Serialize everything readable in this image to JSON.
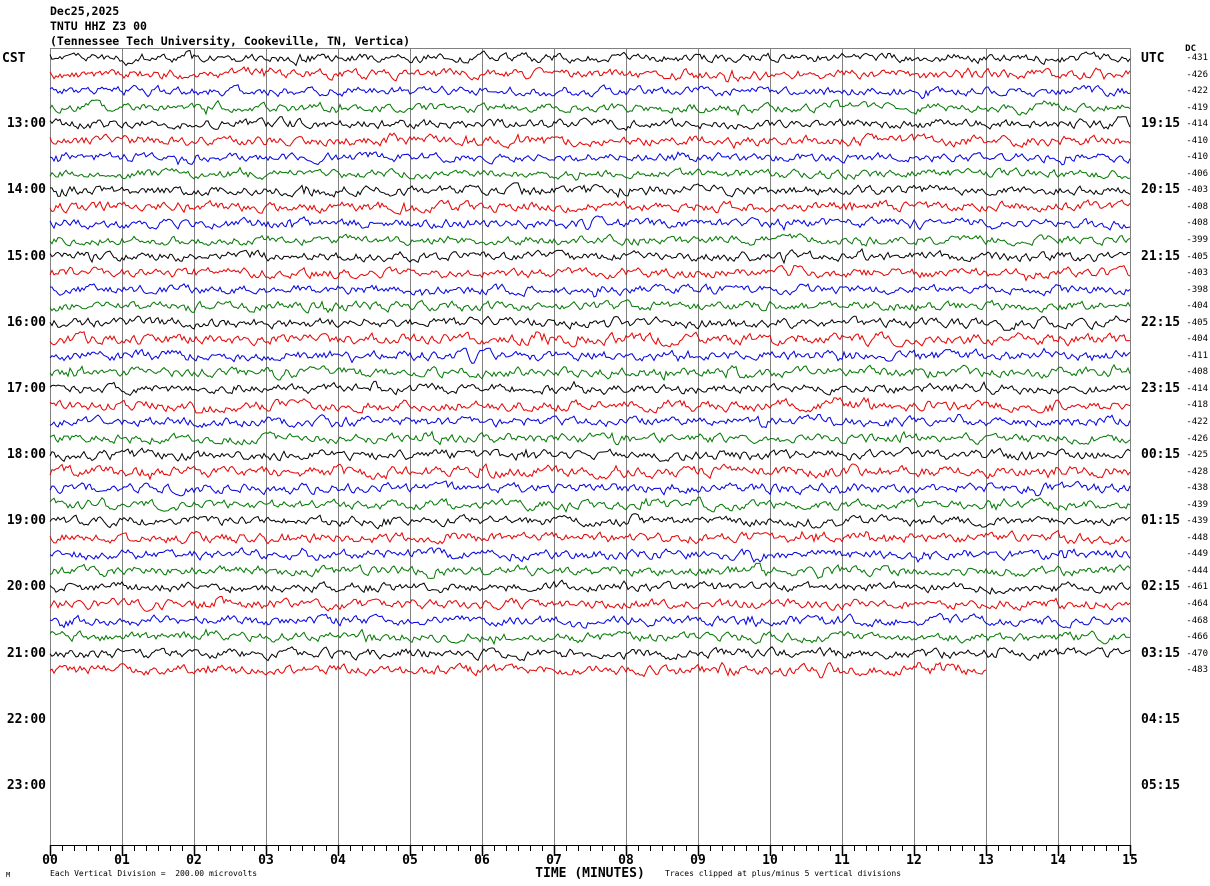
{
  "header": {
    "date": "Dec25,2025",
    "station": "TNTU HHZ Z3 00",
    "location": "(Tennessee Tech University, Cookeville, TN, Vertica)"
  },
  "axes": {
    "left_timezone": "CST",
    "right_timezone": "UTC",
    "dc_header": "DC",
    "x_title": "TIME (MINUTES)",
    "x_tick_labels": [
      "00",
      "01",
      "02",
      "03",
      "04",
      "05",
      "06",
      "07",
      "08",
      "09",
      "10",
      "11",
      "12",
      "13",
      "14",
      "15"
    ]
  },
  "footer": {
    "corner_mark": "M",
    "scale_note": "Each Vertical Division =  200.00 microvolts",
    "clip_note": "Traces clipped at plus/minus 5 vertical divisions"
  },
  "chart_data": {
    "type": "line",
    "variant": "helicorder-seismogram",
    "title": "TNTU HHZ Z3 00 Dec25,2025",
    "xlabel": "TIME (MINUTES)",
    "x_range_minutes": [
      0,
      15
    ],
    "minor_ticks_per_minute": 6,
    "row_slots": 48,
    "rows_per_hour": 4,
    "grid": true,
    "microvolts_per_division": 200.0,
    "clip_divisions": 5,
    "colors": {
      "black": "#000000",
      "red": "#e60000",
      "blue": "#0000e0",
      "green": "#007700",
      "grid": "#808080",
      "axis": "#000000"
    },
    "left_time_labels": [
      {
        "row": 4,
        "label": "13:00"
      },
      {
        "row": 8,
        "label": "14:00"
      },
      {
        "row": 12,
        "label": "15:00"
      },
      {
        "row": 16,
        "label": "16:00"
      },
      {
        "row": 20,
        "label": "17:00"
      },
      {
        "row": 24,
        "label": "18:00"
      },
      {
        "row": 28,
        "label": "19:00"
      },
      {
        "row": 32,
        "label": "20:00"
      },
      {
        "row": 36,
        "label": "21:00"
      },
      {
        "row": 40,
        "label": "22:00"
      },
      {
        "row": 44,
        "label": "23:00"
      }
    ],
    "right_time_labels": [
      {
        "row": 4,
        "label": "19:15"
      },
      {
        "row": 8,
        "label": "20:15"
      },
      {
        "row": 12,
        "label": "21:15"
      },
      {
        "row": 16,
        "label": "22:15"
      },
      {
        "row": 20,
        "label": "23:15"
      },
      {
        "row": 24,
        "label": "00:15"
      },
      {
        "row": 28,
        "label": "01:15"
      },
      {
        "row": 32,
        "label": "02:15"
      },
      {
        "row": 36,
        "label": "03:15"
      },
      {
        "row": 40,
        "label": "04:15"
      },
      {
        "row": 44,
        "label": "05:15"
      }
    ],
    "traces": [
      {
        "row": 0,
        "color": "black",
        "dc": -431,
        "end_minute": 15,
        "amp": 2.5,
        "seed": 7
      },
      {
        "row": 1,
        "color": "red",
        "dc": -426,
        "end_minute": 15,
        "amp": 2.7,
        "seed": 138
      },
      {
        "row": 2,
        "color": "blue",
        "dc": -422,
        "end_minute": 15,
        "amp": 2.6,
        "seed": 269
      },
      {
        "row": 3,
        "color": "green",
        "dc": -419,
        "end_minute": 15,
        "amp": 2.4,
        "seed": 400
      },
      {
        "row": 4,
        "color": "black",
        "dc": -414,
        "end_minute": 15,
        "amp": 2.6,
        "seed": 531
      },
      {
        "row": 5,
        "color": "red",
        "dc": -410,
        "end_minute": 15,
        "amp": 2.8,
        "seed": 662
      },
      {
        "row": 6,
        "color": "blue",
        "dc": -410,
        "end_minute": 15,
        "amp": 2.5,
        "seed": 793
      },
      {
        "row": 7,
        "color": "green",
        "dc": -406,
        "end_minute": 15,
        "amp": 2.4,
        "seed": 924
      },
      {
        "row": 8,
        "color": "black",
        "dc": -403,
        "end_minute": 15,
        "amp": 2.6,
        "seed": 1055
      },
      {
        "row": 9,
        "color": "red",
        "dc": -408,
        "end_minute": 15,
        "amp": 2.9,
        "seed": 1186
      },
      {
        "row": 10,
        "color": "blue",
        "dc": -408,
        "end_minute": 15,
        "amp": 2.7,
        "seed": 1317
      },
      {
        "row": 11,
        "color": "green",
        "dc": -399,
        "end_minute": 15,
        "amp": 2.5,
        "seed": 1448
      },
      {
        "row": 12,
        "color": "black",
        "dc": -405,
        "end_minute": 15,
        "amp": 2.6,
        "seed": 1579
      },
      {
        "row": 13,
        "color": "red",
        "dc": -403,
        "end_minute": 15,
        "amp": 2.7,
        "seed": 1710
      },
      {
        "row": 14,
        "color": "blue",
        "dc": -398,
        "end_minute": 15,
        "amp": 2.5,
        "seed": 1841
      },
      {
        "row": 15,
        "color": "green",
        "dc": -404,
        "end_minute": 15,
        "amp": 2.6,
        "seed": 1972
      },
      {
        "row": 16,
        "color": "black",
        "dc": -405,
        "end_minute": 15,
        "amp": 2.8,
        "seed": 2103
      },
      {
        "row": 17,
        "color": "red",
        "dc": -404,
        "end_minute": 15,
        "amp": 3.0,
        "seed": 2234
      },
      {
        "row": 18,
        "color": "blue",
        "dc": -411,
        "end_minute": 15,
        "amp": 2.9,
        "seed": 2365
      },
      {
        "row": 19,
        "color": "green",
        "dc": -408,
        "end_minute": 15,
        "amp": 2.8,
        "seed": 2496
      },
      {
        "row": 20,
        "color": "black",
        "dc": -414,
        "end_minute": 15,
        "amp": 2.6,
        "seed": 2627
      },
      {
        "row": 21,
        "color": "red",
        "dc": -418,
        "end_minute": 15,
        "amp": 2.9,
        "seed": 2758
      },
      {
        "row": 22,
        "color": "blue",
        "dc": -422,
        "end_minute": 15,
        "amp": 2.7,
        "seed": 2889
      },
      {
        "row": 23,
        "color": "green",
        "dc": -426,
        "end_minute": 15,
        "amp": 2.6,
        "seed": 3020
      },
      {
        "row": 24,
        "color": "black",
        "dc": -425,
        "end_minute": 15,
        "amp": 2.8,
        "seed": 3151
      },
      {
        "row": 25,
        "color": "red",
        "dc": -428,
        "end_minute": 15,
        "amp": 3.0,
        "seed": 3282
      },
      {
        "row": 26,
        "color": "blue",
        "dc": -438,
        "end_minute": 15,
        "amp": 2.8,
        "seed": 3413
      },
      {
        "row": 27,
        "color": "green",
        "dc": -439,
        "end_minute": 15,
        "amp": 2.7,
        "seed": 3544
      },
      {
        "row": 28,
        "color": "black",
        "dc": -439,
        "end_minute": 15,
        "amp": 2.6,
        "seed": 3675
      },
      {
        "row": 29,
        "color": "red",
        "dc": -448,
        "end_minute": 15,
        "amp": 2.9,
        "seed": 3806
      },
      {
        "row": 30,
        "color": "blue",
        "dc": -449,
        "end_minute": 15,
        "amp": 2.8,
        "seed": 3937
      },
      {
        "row": 31,
        "color": "green",
        "dc": -444,
        "end_minute": 15,
        "amp": 2.7,
        "seed": 4068
      },
      {
        "row": 32,
        "color": "black",
        "dc": -461,
        "end_minute": 15,
        "amp": 2.6,
        "seed": 4199
      },
      {
        "row": 33,
        "color": "red",
        "dc": -464,
        "end_minute": 15,
        "amp": 2.8,
        "seed": 4330
      },
      {
        "row": 34,
        "color": "blue",
        "dc": -468,
        "end_minute": 15,
        "amp": 2.7,
        "seed": 4461
      },
      {
        "row": 35,
        "color": "green",
        "dc": -466,
        "end_minute": 15,
        "amp": 2.6,
        "seed": 4592
      },
      {
        "row": 36,
        "color": "black",
        "dc": -470,
        "end_minute": 15,
        "amp": 2.7,
        "seed": 4723
      },
      {
        "row": 37,
        "color": "red",
        "dc": -483,
        "end_minute": 13,
        "amp": 2.8,
        "seed": 4854
      }
    ]
  }
}
